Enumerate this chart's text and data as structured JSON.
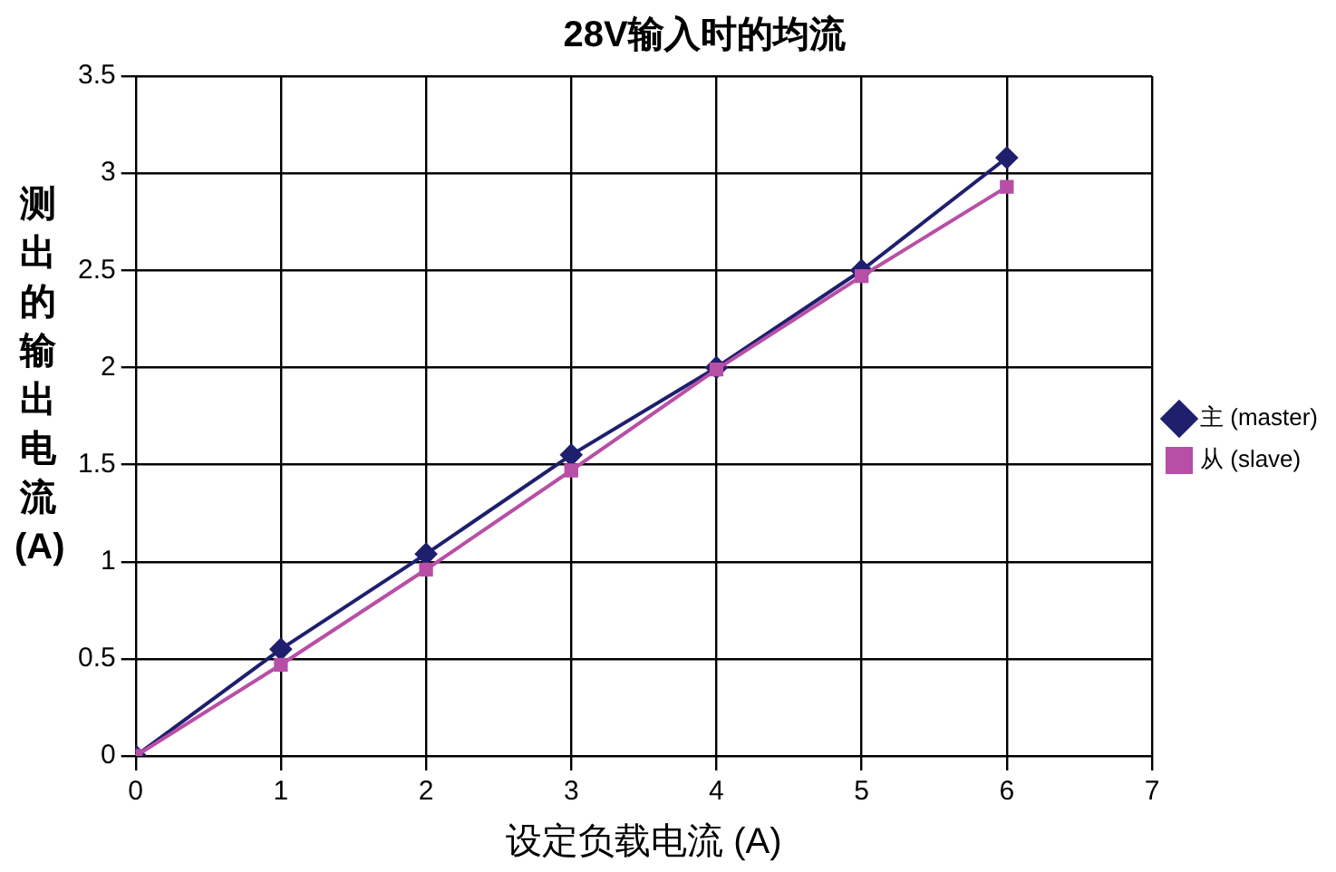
{
  "chart_data": {
    "type": "line",
    "title": "28V输入时的均流",
    "xlabel": "设定负载电流 (A)",
    "ylabel": "测出的输出电流 (A)",
    "x": [
      0,
      1,
      2,
      3,
      4,
      5,
      6
    ],
    "series": [
      {
        "name": "主 (master)",
        "color": "#1f1f6e",
        "marker": "diamond",
        "values": [
          0,
          0.55,
          1.04,
          1.55,
          2.0,
          2.5,
          3.08
        ]
      },
      {
        "name": "从 (slave)",
        "color": "#b84fa6",
        "marker": "square",
        "values": [
          0,
          0.47,
          0.96,
          1.47,
          1.99,
          2.47,
          2.93
        ]
      }
    ],
    "xlim": [
      0,
      7
    ],
    "xticks": [
      0,
      1,
      2,
      3,
      4,
      5,
      6,
      7
    ],
    "ylim": [
      0,
      3.5
    ],
    "yticks": [
      0,
      0.5,
      1,
      1.5,
      2,
      2.5,
      3,
      3.5
    ],
    "grid": true,
    "legend": "right"
  }
}
